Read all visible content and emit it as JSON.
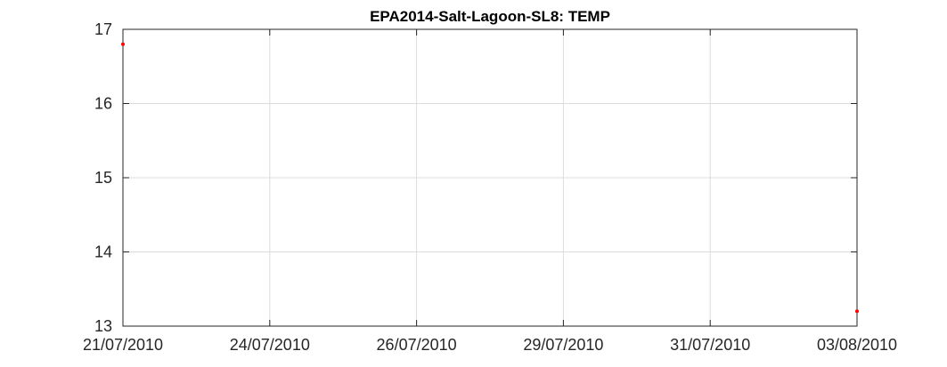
{
  "chart_data": {
    "type": "scatter",
    "title": "EPA2014-Salt-Lagoon-SL8: TEMP",
    "xlabel": "",
    "ylabel": "",
    "x_ticks": [
      "21/07/2010",
      "24/07/2010",
      "26/07/2010",
      "29/07/2010",
      "31/07/2010",
      "03/08/2010"
    ],
    "y_ticks": [
      "13",
      "14",
      "15",
      "16",
      "17"
    ],
    "xlim": [
      "21/07/2010",
      "03/08/2010"
    ],
    "ylim": [
      13,
      17
    ],
    "grid": true,
    "series": [
      {
        "color": "#ff0000",
        "points": [
          {
            "x": "21/07/2010",
            "y": 16.8
          },
          {
            "x": "03/08/2010",
            "y": 13.2
          }
        ]
      }
    ]
  }
}
